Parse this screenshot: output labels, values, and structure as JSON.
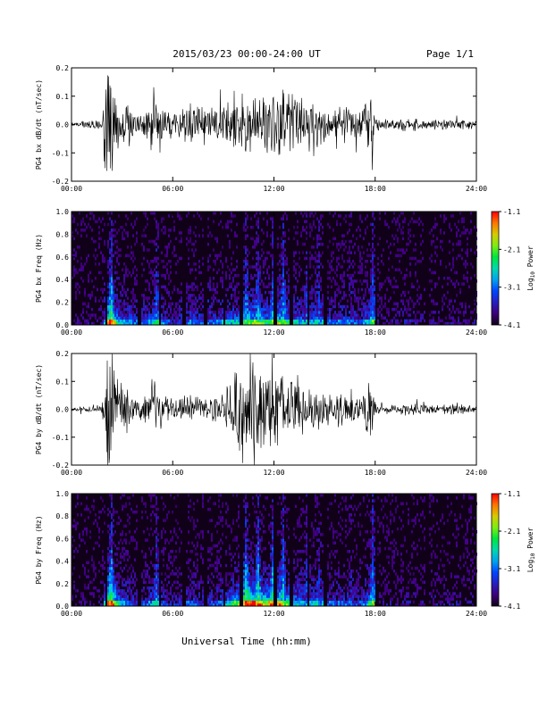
{
  "header": {
    "date_range": "2015/03/23  00:00-24:00 UT",
    "page": "Page 1/1"
  },
  "chart_data": [
    {
      "type": "line",
      "panel": "bx-waveform",
      "ylabel": "PG4 bx dB/dt (nT/sec)",
      "ylim": [
        -0.2,
        0.2
      ],
      "yticks": [
        "0.2",
        "0.1",
        "0.0",
        "-0.1",
        "-0.2"
      ],
      "xlim": [
        "00:00",
        "24:00"
      ],
      "xticks": [
        "00:00",
        "06:00",
        "12:00",
        "18:00",
        "24:00"
      ],
      "line_color": "#000000",
      "envelope": {
        "x_hours": [
          0,
          1.8,
          2.0,
          2.3,
          2.8,
          3.5,
          4.0,
          4.5,
          5.0,
          5.5,
          6.0,
          6.5,
          7.0,
          7.5,
          8.0,
          8.5,
          9.0,
          9.5,
          10.0,
          10.5,
          11.0,
          11.5,
          12.0,
          12.5,
          13.0,
          13.5,
          14.0,
          14.5,
          15.0,
          15.5,
          16.0,
          16.5,
          17.0,
          17.5,
          17.9,
          18.0,
          19.0,
          20.0,
          21.0,
          22.0,
          23.0,
          24.0
        ],
        "amplitude": [
          0.01,
          0.02,
          0.18,
          0.22,
          0.1,
          0.08,
          0.05,
          0.08,
          0.12,
          0.06,
          0.05,
          0.06,
          0.08,
          0.08,
          0.06,
          0.07,
          0.09,
          0.1,
          0.12,
          0.15,
          0.14,
          0.12,
          0.16,
          0.14,
          0.12,
          0.1,
          0.09,
          0.1,
          0.08,
          0.07,
          0.08,
          0.07,
          0.06,
          0.1,
          0.15,
          0.02,
          0.02,
          0.03,
          0.02,
          0.02,
          0.02,
          0.015
        ]
      }
    },
    {
      "type": "heatmap",
      "panel": "bx-spectrogram",
      "ylabel": "PG4 bx Freq (Hz)",
      "ylim": [
        0.0,
        1.0
      ],
      "yticks": [
        "1.0",
        "0.8",
        "0.6",
        "0.4",
        "0.2",
        "0.0"
      ],
      "xlim": [
        "00:00",
        "24:00"
      ],
      "xticks": [
        "00:00",
        "06:00",
        "12:00",
        "18:00",
        "24:00"
      ],
      "colorbar": {
        "label": "Log10 Power",
        "label_main": "Log",
        "label_sub": "10",
        "label_tail": " Power",
        "ticks": [
          "-1.1",
          "-2.1",
          "-3.1",
          "-4.1"
        ],
        "range": [
          -4.1,
          -1.1
        ]
      },
      "bursts_hours": [
        2.3,
        5.0,
        8.0,
        10.3,
        11.0,
        11.9,
        12.5,
        13.9,
        14.6,
        16.5,
        17.8
      ],
      "gap_hours": [
        2.0,
        4.0,
        5.2,
        6.6,
        7.9,
        9.0,
        10.0,
        12.0,
        13.0,
        14.0,
        15.0,
        18.0,
        21.0
      ]
    },
    {
      "type": "line",
      "panel": "by-waveform",
      "ylabel": "PG4 by dB/dt (nT/sec)",
      "ylim": [
        -0.2,
        0.2
      ],
      "yticks": [
        "0.2",
        "0.1",
        "0.0",
        "-0.1",
        "-0.2"
      ],
      "xlim": [
        "00:00",
        "24:00"
      ],
      "xticks": [
        "00:00",
        "06:00",
        "12:00",
        "18:00",
        "24:00"
      ],
      "line_color": "#000000",
      "envelope": {
        "x_hours": [
          0,
          1.8,
          2.0,
          2.3,
          2.8,
          3.5,
          4.0,
          4.5,
          5.0,
          5.5,
          6.0,
          6.5,
          7.0,
          7.5,
          8.0,
          8.5,
          9.0,
          9.5,
          10.0,
          10.5,
          11.0,
          11.5,
          12.0,
          12.5,
          13.0,
          13.5,
          14.0,
          14.5,
          15.0,
          15.5,
          16.0,
          16.5,
          17.0,
          17.5,
          17.9,
          18.0,
          19.0,
          20.0,
          21.0,
          22.0,
          23.0,
          24.0
        ],
        "amplitude": [
          0.008,
          0.015,
          0.2,
          0.22,
          0.1,
          0.06,
          0.04,
          0.07,
          0.12,
          0.05,
          0.04,
          0.05,
          0.07,
          0.06,
          0.05,
          0.06,
          0.08,
          0.12,
          0.18,
          0.22,
          0.2,
          0.16,
          0.22,
          0.16,
          0.12,
          0.1,
          0.09,
          0.1,
          0.07,
          0.06,
          0.07,
          0.06,
          0.05,
          0.1,
          0.16,
          0.02,
          0.02,
          0.025,
          0.02,
          0.02,
          0.02,
          0.015
        ]
      }
    },
    {
      "type": "heatmap",
      "panel": "by-spectrogram",
      "ylabel": "PG4 by Freq (Hz)",
      "ylim": [
        0.0,
        1.0
      ],
      "yticks": [
        "1.0",
        "0.8",
        "0.6",
        "0.4",
        "0.2",
        "0.0"
      ],
      "xlim": [
        "00:00",
        "24:00"
      ],
      "xticks": [
        "00:00",
        "06:00",
        "12:00",
        "18:00",
        "24:00"
      ],
      "colorbar": {
        "label": "Log10 Power",
        "label_main": "Log",
        "label_sub": "10",
        "label_tail": " Power",
        "ticks": [
          "-1.1",
          "-2.1",
          "-3.1",
          "-4.1"
        ],
        "range": [
          -4.1,
          -1.1
        ]
      },
      "bursts_hours": [
        2.3,
        5.0,
        8.0,
        10.3,
        11.0,
        11.9,
        12.5,
        13.9,
        14.6,
        16.5,
        17.8
      ],
      "gap_hours": [
        2.0,
        4.0,
        5.2,
        6.6,
        7.9,
        9.0,
        10.0,
        12.0,
        13.0,
        14.0,
        15.0,
        18.0,
        21.0
      ]
    }
  ],
  "xlabel": "Universal Time (hh:mm)"
}
